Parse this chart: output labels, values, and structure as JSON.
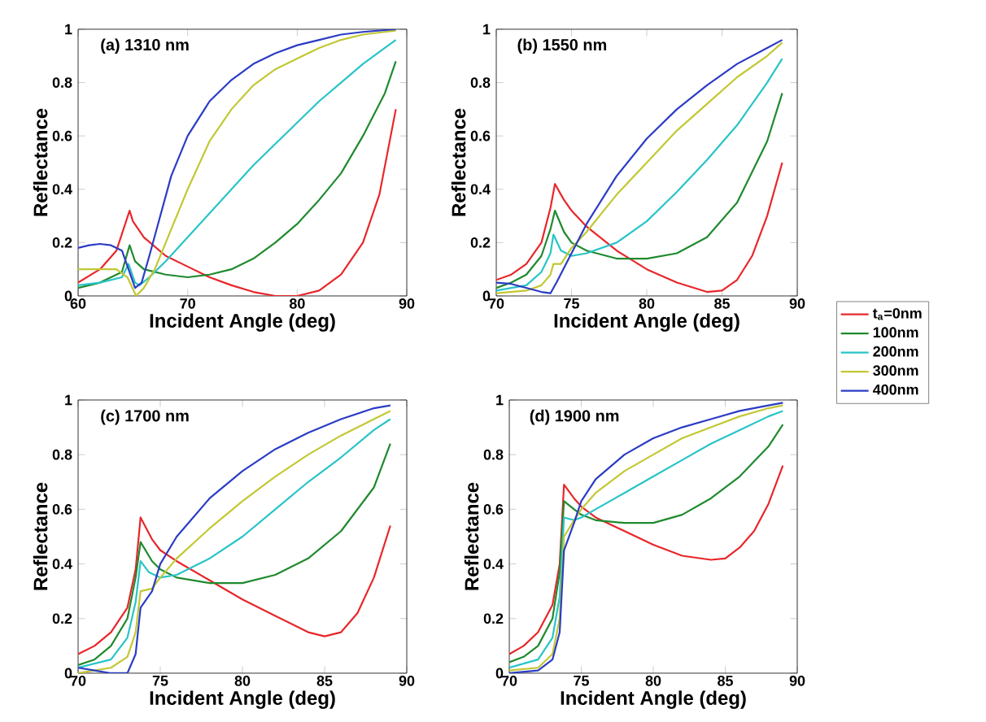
{
  "chart_data": [
    {
      "type": "line",
      "title": "(a) 1310 nm",
      "xlabel": "Incident Angle (deg)",
      "ylabel": "Reflectance",
      "xlim": [
        60,
        90
      ],
      "ylim": [
        0,
        1
      ],
      "xticks": [
        60,
        70,
        80,
        90
      ],
      "yticks": [
        0,
        0.2,
        0.4,
        0.6,
        0.8,
        1
      ],
      "legend": false,
      "series": [
        {
          "color": "#e8262a",
          "x": [
            60,
            62,
            63.5,
            64.7,
            65,
            66,
            68,
            70,
            72,
            74,
            76,
            78,
            80,
            82,
            84,
            86,
            87.5,
            89
          ],
          "values": [
            0.05,
            0.1,
            0.17,
            0.32,
            0.28,
            0.22,
            0.15,
            0.11,
            0.07,
            0.04,
            0.015,
            0.0,
            0.0,
            0.02,
            0.08,
            0.2,
            0.38,
            0.7
          ]
        },
        {
          "color": "#1f8a2e",
          "x": [
            60,
            62,
            64,
            64.7,
            65.2,
            66,
            68,
            70,
            72,
            74,
            76,
            78,
            80,
            82,
            84,
            86,
            88,
            89
          ],
          "values": [
            0.03,
            0.05,
            0.09,
            0.19,
            0.13,
            0.1,
            0.08,
            0.07,
            0.08,
            0.1,
            0.14,
            0.2,
            0.27,
            0.36,
            0.46,
            0.6,
            0.76,
            0.88
          ]
        },
        {
          "color": "#28c4c8",
          "x": [
            60,
            62,
            64,
            64.6,
            65.2,
            65.6,
            66.5,
            68,
            70,
            72,
            74,
            76,
            78,
            80,
            82,
            84,
            86,
            88,
            89
          ],
          "values": [
            0.04,
            0.05,
            0.07,
            0.12,
            0.05,
            0.04,
            0.07,
            0.13,
            0.22,
            0.31,
            0.4,
            0.49,
            0.57,
            0.65,
            0.73,
            0.8,
            0.87,
            0.93,
            0.96
          ]
        },
        {
          "color": "#c2c832",
          "x": [
            60,
            62,
            63.5,
            64.5,
            65.3,
            66,
            67,
            68,
            70,
            72,
            74,
            76,
            78,
            80,
            82,
            84,
            86,
            88,
            89
          ],
          "values": [
            0.1,
            0.1,
            0.1,
            0.07,
            0.0,
            0.03,
            0.1,
            0.2,
            0.4,
            0.58,
            0.7,
            0.79,
            0.85,
            0.89,
            0.93,
            0.96,
            0.98,
            0.99,
            0.995
          ]
        },
        {
          "color": "#2b3cc4",
          "x": [
            60,
            61,
            62,
            63,
            64,
            64.6,
            65.2,
            65.8,
            66.5,
            67.5,
            68.5,
            70,
            72,
            74,
            76,
            78,
            80,
            82,
            84,
            86,
            89
          ],
          "values": [
            0.18,
            0.19,
            0.195,
            0.19,
            0.17,
            0.1,
            0.03,
            0.05,
            0.15,
            0.3,
            0.45,
            0.6,
            0.73,
            0.81,
            0.87,
            0.91,
            0.94,
            0.96,
            0.98,
            0.99,
            1.0
          ]
        }
      ]
    },
    {
      "type": "line",
      "title": "(b) 1550 nm",
      "xlabel": "Incident Angle (deg)",
      "ylabel": "Reflectance",
      "xlim": [
        70,
        90
      ],
      "ylim": [
        0,
        1
      ],
      "xticks": [
        70,
        75,
        80,
        85,
        90
      ],
      "yticks": [
        0,
        0.2,
        0.4,
        0.6,
        0.8,
        1
      ],
      "legend": "right",
      "series": [
        {
          "name": "t$_{a}$=0nm",
          "color": "#e8262a",
          "x": [
            70,
            71,
            72,
            73,
            73.6,
            73.9,
            74.5,
            75,
            76,
            78,
            80,
            82,
            84,
            85,
            86,
            87,
            88,
            89
          ],
          "values": [
            0.06,
            0.08,
            0.12,
            0.2,
            0.33,
            0.42,
            0.36,
            0.32,
            0.26,
            0.17,
            0.1,
            0.05,
            0.015,
            0.02,
            0.06,
            0.15,
            0.3,
            0.5
          ]
        },
        {
          "name": "100nm",
          "color": "#1f8a2e",
          "x": [
            70,
            71,
            72,
            73,
            73.6,
            73.9,
            74.5,
            75,
            76,
            78,
            80,
            82,
            84,
            86,
            88,
            89
          ],
          "values": [
            0.03,
            0.05,
            0.08,
            0.15,
            0.25,
            0.32,
            0.24,
            0.2,
            0.17,
            0.14,
            0.14,
            0.16,
            0.22,
            0.35,
            0.58,
            0.76
          ]
        },
        {
          "name": "200nm",
          "color": "#28c4c8",
          "x": [
            70,
            72,
            73,
            73.6,
            73.8,
            74.3,
            75,
            76,
            78,
            80,
            82,
            84,
            86,
            88,
            89
          ],
          "values": [
            0.02,
            0.04,
            0.09,
            0.16,
            0.23,
            0.17,
            0.15,
            0.16,
            0.2,
            0.28,
            0.39,
            0.51,
            0.64,
            0.8,
            0.89
          ]
        },
        {
          "name": "300nm",
          "color": "#c2c832",
          "x": [
            70,
            72,
            73,
            73.6,
            73.8,
            74.3,
            75,
            76,
            78,
            80,
            82,
            84,
            86,
            88,
            89
          ],
          "values": [
            0.01,
            0.02,
            0.04,
            0.08,
            0.12,
            0.12,
            0.18,
            0.24,
            0.38,
            0.5,
            0.62,
            0.72,
            0.82,
            0.9,
            0.95
          ]
        },
        {
          "name": "400nm",
          "color": "#2b3cc4",
          "x": [
            70,
            71,
            72,
            73,
            73.6,
            74,
            75,
            76,
            78,
            80,
            82,
            84,
            86,
            88,
            89
          ],
          "values": [
            0.05,
            0.045,
            0.03,
            0.015,
            0.01,
            0.05,
            0.16,
            0.27,
            0.45,
            0.59,
            0.7,
            0.79,
            0.87,
            0.93,
            0.96
          ]
        }
      ]
    },
    {
      "type": "line",
      "title": "(c) 1700 nm",
      "xlabel": "Incident Angle (deg)",
      "ylabel": "Reflectance",
      "xlim": [
        70,
        90
      ],
      "ylim": [
        0,
        1
      ],
      "xticks": [
        70,
        75,
        80,
        85,
        90
      ],
      "yticks": [
        0,
        0.2,
        0.4,
        0.6,
        0.8,
        1
      ],
      "legend": false,
      "series": [
        {
          "color": "#e8262a",
          "x": [
            70,
            71,
            72,
            73,
            73.5,
            73.8,
            74.5,
            75,
            76,
            78,
            80,
            82,
            84,
            85,
            86,
            87,
            88,
            89
          ],
          "values": [
            0.07,
            0.1,
            0.15,
            0.24,
            0.38,
            0.57,
            0.49,
            0.45,
            0.41,
            0.34,
            0.27,
            0.21,
            0.15,
            0.135,
            0.15,
            0.22,
            0.35,
            0.54
          ]
        },
        {
          "color": "#1f8a2e",
          "x": [
            70,
            71,
            72,
            73,
            73.5,
            73.8,
            74.5,
            75,
            76,
            78,
            80,
            82,
            84,
            86,
            88,
            89
          ],
          "values": [
            0.03,
            0.05,
            0.1,
            0.2,
            0.35,
            0.48,
            0.41,
            0.38,
            0.35,
            0.33,
            0.33,
            0.36,
            0.42,
            0.52,
            0.68,
            0.84
          ]
        },
        {
          "color": "#28c4c8",
          "x": [
            70,
            72,
            73,
            73.5,
            73.8,
            74.3,
            75,
            76,
            78,
            80,
            82,
            84,
            86,
            88,
            89
          ],
          "values": [
            0.02,
            0.05,
            0.13,
            0.26,
            0.41,
            0.37,
            0.35,
            0.36,
            0.42,
            0.5,
            0.6,
            0.7,
            0.79,
            0.89,
            0.93
          ]
        },
        {
          "color": "#c2c832",
          "x": [
            70,
            72,
            73,
            73.5,
            73.8,
            74.5,
            75,
            76,
            78,
            80,
            82,
            84,
            86,
            88,
            89
          ],
          "values": [
            0.0,
            0.02,
            0.06,
            0.15,
            0.3,
            0.31,
            0.35,
            0.42,
            0.53,
            0.63,
            0.72,
            0.8,
            0.87,
            0.93,
            0.96
          ]
        },
        {
          "color": "#2b3cc4",
          "x": [
            70,
            71,
            72,
            73,
            73.5,
            73.8,
            74.5,
            75,
            76,
            78,
            80,
            82,
            84,
            86,
            88,
            89
          ],
          "values": [
            0.02,
            0.01,
            0.0,
            0.0,
            0.07,
            0.24,
            0.3,
            0.4,
            0.5,
            0.64,
            0.74,
            0.82,
            0.88,
            0.93,
            0.97,
            0.98
          ]
        }
      ]
    },
    {
      "type": "line",
      "title": "(d) 1900 nm",
      "xlabel": "Incident Angle (deg)",
      "ylabel": "Reflectance",
      "xlim": [
        70,
        90
      ],
      "ylim": [
        0,
        1
      ],
      "xticks": [
        70,
        75,
        80,
        85,
        90
      ],
      "yticks": [
        0,
        0.2,
        0.4,
        0.6,
        0.8,
        1
      ],
      "legend": false,
      "series": [
        {
          "color": "#e8262a",
          "x": [
            70,
            71,
            72,
            73,
            73.5,
            73.8,
            74.5,
            75,
            76,
            78,
            80,
            82,
            84,
            85,
            86,
            87,
            88,
            89
          ],
          "values": [
            0.07,
            0.1,
            0.15,
            0.25,
            0.4,
            0.69,
            0.64,
            0.61,
            0.57,
            0.52,
            0.47,
            0.43,
            0.415,
            0.42,
            0.46,
            0.52,
            0.62,
            0.76
          ]
        },
        {
          "color": "#1f8a2e",
          "x": [
            70,
            71,
            72,
            73,
            73.5,
            73.8,
            74.5,
            75,
            76,
            78,
            80,
            82,
            84,
            86,
            88,
            89
          ],
          "values": [
            0.04,
            0.06,
            0.1,
            0.2,
            0.37,
            0.63,
            0.6,
            0.58,
            0.56,
            0.55,
            0.55,
            0.58,
            0.64,
            0.72,
            0.83,
            0.91
          ]
        },
        {
          "color": "#28c4c8",
          "x": [
            70,
            72,
            73,
            73.5,
            73.8,
            74.5,
            75,
            76,
            78,
            80,
            82,
            84,
            86,
            88,
            89
          ],
          "values": [
            0.02,
            0.05,
            0.13,
            0.28,
            0.57,
            0.56,
            0.57,
            0.6,
            0.66,
            0.72,
            0.78,
            0.84,
            0.89,
            0.94,
            0.96
          ]
        },
        {
          "color": "#c2c832",
          "x": [
            70,
            72,
            73,
            73.5,
            73.8,
            74.5,
            75,
            76,
            78,
            80,
            82,
            84,
            86,
            88,
            89
          ],
          "values": [
            0.01,
            0.02,
            0.07,
            0.2,
            0.5,
            0.56,
            0.6,
            0.66,
            0.74,
            0.8,
            0.86,
            0.9,
            0.94,
            0.97,
            0.98
          ]
        },
        {
          "color": "#2b3cc4",
          "x": [
            70,
            72,
            73,
            73.5,
            73.8,
            74.5,
            75,
            76,
            78,
            80,
            82,
            84,
            86,
            88,
            89
          ],
          "values": [
            0.0,
            0.01,
            0.05,
            0.15,
            0.45,
            0.55,
            0.63,
            0.71,
            0.8,
            0.86,
            0.9,
            0.93,
            0.96,
            0.98,
            0.99
          ]
        }
      ]
    }
  ]
}
